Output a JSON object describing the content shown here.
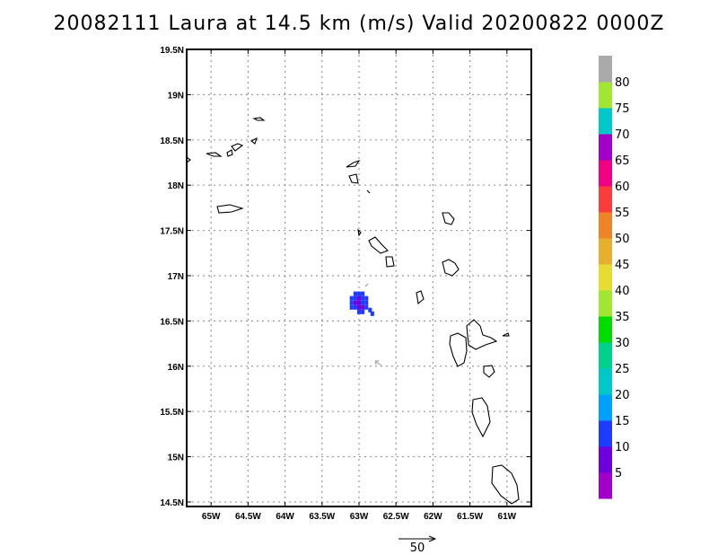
{
  "title": "20082111 Laura at 14.5 km (m/s) Valid 20200822 0000Z",
  "chart_data": {
    "type": "heatmap",
    "title": "20082111 Laura at 14.5 km (m/s) Valid 20200822 0000Z",
    "xlabel": "",
    "ylabel": "",
    "xlim": [
      -65.33,
      -60.67
    ],
    "ylim": [
      14.45,
      19.5
    ],
    "grid": true,
    "x_ticks": [
      {
        "value": -65.0,
        "label": "65W"
      },
      {
        "value": -64.5,
        "label": "64.5W"
      },
      {
        "value": -64.0,
        "label": "64W"
      },
      {
        "value": -63.5,
        "label": "63.5W"
      },
      {
        "value": -63.0,
        "label": "63W"
      },
      {
        "value": -62.5,
        "label": "62.5W"
      },
      {
        "value": -62.0,
        "label": "62W"
      },
      {
        "value": -61.5,
        "label": "61.5W"
      },
      {
        "value": -61.0,
        "label": "61W"
      }
    ],
    "y_ticks": [
      {
        "value": 14.5,
        "label": "14.5N"
      },
      {
        "value": 15.0,
        "label": "15N"
      },
      {
        "value": 15.5,
        "label": "15.5N"
      },
      {
        "value": 16.0,
        "label": "16N"
      },
      {
        "value": 16.5,
        "label": "16.5N"
      },
      {
        "value": 17.0,
        "label": "17N"
      },
      {
        "value": 17.5,
        "label": "17.5N"
      },
      {
        "value": 18.0,
        "label": "18N"
      },
      {
        "value": 18.5,
        "label": "18.5N"
      },
      {
        "value": 19.0,
        "label": "19N"
      },
      {
        "value": 19.5,
        "label": "19.5N"
      }
    ],
    "colorbar": {
      "labels": [
        "5",
        "10",
        "15",
        "20",
        "25",
        "30",
        "35",
        "40",
        "45",
        "50",
        "55",
        "60",
        "65",
        "70",
        "75",
        "80"
      ],
      "colors": [
        "#a000c8",
        "#6e00dc",
        "#1e3cff",
        "#00a0ff",
        "#00c8c8",
        "#00d28c",
        "#00dc00",
        "#a0e632",
        "#e6dc32",
        "#e6af2d",
        "#f08228",
        "#fa3c3c",
        "#f00082",
        "#a000c8",
        "#00c8c8",
        "#a0e632",
        "#aaaaaa"
      ]
    },
    "wind_cells": [
      {
        "lon": -63.05,
        "lat": 16.8,
        "value": 12
      },
      {
        "lon": -63.0,
        "lat": 16.8,
        "value": 12
      },
      {
        "lon": -62.95,
        "lat": 16.8,
        "value": 10
      },
      {
        "lon": -63.1,
        "lat": 16.75,
        "value": 12
      },
      {
        "lon": -63.05,
        "lat": 16.75,
        "value": 10
      },
      {
        "lon": -63.0,
        "lat": 16.75,
        "value": 7
      },
      {
        "lon": -62.95,
        "lat": 16.75,
        "value": 12
      },
      {
        "lon": -62.9,
        "lat": 16.75,
        "value": 12
      },
      {
        "lon": -63.1,
        "lat": 16.7,
        "value": 12
      },
      {
        "lon": -63.05,
        "lat": 16.7,
        "value": 7
      },
      {
        "lon": -63.0,
        "lat": 16.7,
        "value": 5
      },
      {
        "lon": -62.95,
        "lat": 16.7,
        "value": 10
      },
      {
        "lon": -62.9,
        "lat": 16.7,
        "value": 12
      },
      {
        "lon": -63.1,
        "lat": 16.65,
        "value": 12
      },
      {
        "lon": -63.05,
        "lat": 16.65,
        "value": 10
      },
      {
        "lon": -63.0,
        "lat": 16.65,
        "value": 5
      },
      {
        "lon": -62.95,
        "lat": 16.65,
        "value": 7
      },
      {
        "lon": -62.9,
        "lat": 16.65,
        "value": 12
      },
      {
        "lon": -63.0,
        "lat": 16.6,
        "value": 12
      },
      {
        "lon": -62.95,
        "lat": 16.6,
        "value": 12
      },
      {
        "lon": -62.85,
        "lat": 16.62,
        "value": 12
      },
      {
        "lon": -62.82,
        "lat": 16.58,
        "value": 12
      }
    ],
    "reference_vector": {
      "label": "50"
    }
  }
}
